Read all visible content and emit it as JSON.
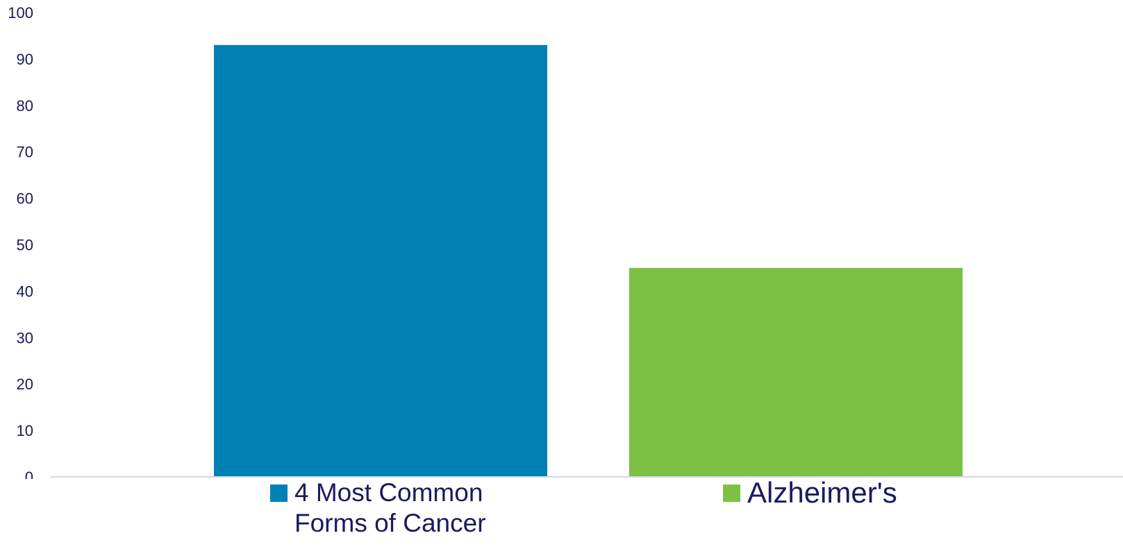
{
  "chart_data": {
    "type": "bar",
    "categories": [
      "4 Most Common Forms of Cancer",
      "Alzheimer's"
    ],
    "values": [
      93,
      45
    ],
    "colors": [
      "#0080b3",
      "#7cc144"
    ],
    "ylim": [
      0,
      100
    ],
    "yticks": [
      "0",
      "10",
      "20",
      "30",
      "40",
      "50",
      "60",
      "70",
      "80",
      "90",
      "100"
    ],
    "grid": false,
    "legend": {
      "placement": "bottom",
      "entries": [
        {
          "label": "4 Most Common Forms of Cancer",
          "color": "#0080b3"
        },
        {
          "label": "Alzheimer's",
          "color": "#7cc144"
        }
      ]
    },
    "title": "",
    "xlabel": "",
    "ylabel": ""
  }
}
